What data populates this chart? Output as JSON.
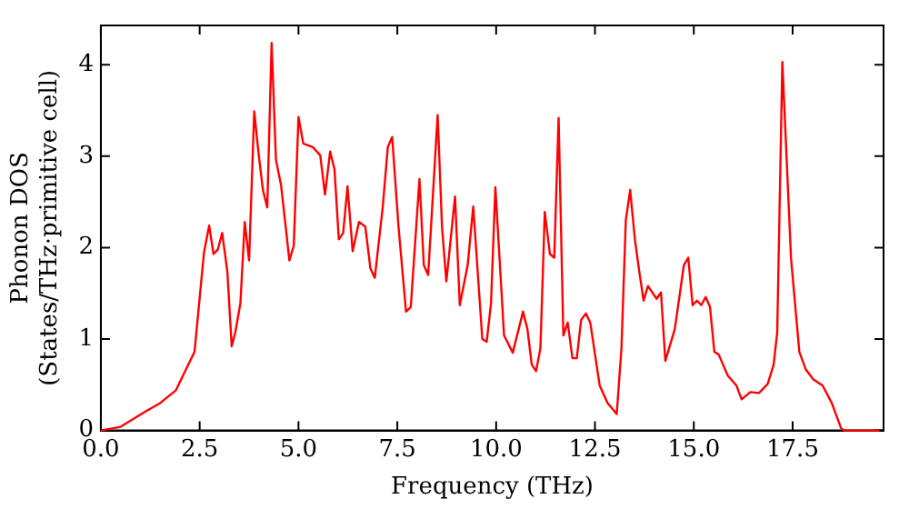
{
  "chart_data": {
    "type": "line",
    "xlabel": "Frequency (THz)",
    "ylabel": "Phonon DOS\n(States/THz·primitive cell)",
    "xlim": [
      0,
      19.8
    ],
    "xticks": [
      {
        "value": 0,
        "label": "0.0"
      },
      {
        "value": 2.5,
        "label": "2.5"
      },
      {
        "value": 5,
        "label": "5.0"
      },
      {
        "value": 7.5,
        "label": "7.5"
      },
      {
        "value": 10,
        "label": "10.0"
      },
      {
        "value": 12.5,
        "label": "12.5"
      },
      {
        "value": 15,
        "label": "15.0"
      },
      {
        "value": 17.5,
        "label": "17.5"
      }
    ],
    "ylim": [
      0,
      4.43
    ],
    "yticks": [
      0,
      1,
      2,
      3,
      4
    ],
    "grid": false,
    "legend": false,
    "marker": "none",
    "line_style": "solid",
    "series": [
      {
        "color": "#ff0000",
        "x": [
          0,
          0.5,
          1.1,
          1.5,
          1.9,
          2.37,
          2.61,
          2.74,
          2.85,
          2.96,
          3.07,
          3.2,
          3.31,
          3.4,
          3.53,
          3.64,
          3.75,
          3.88,
          3.99,
          4.1,
          4.21,
          4.32,
          4.43,
          4.56,
          4.77,
          4.88,
          5.0,
          5.12,
          5.36,
          5.55,
          5.67,
          5.8,
          5.91,
          6.02,
          6.13,
          6.24,
          6.37,
          6.53,
          6.69,
          6.82,
          6.93,
          7.13,
          7.26,
          7.37,
          7.53,
          7.72,
          7.84,
          8.06,
          8.17,
          8.28,
          8.52,
          8.63,
          8.74,
          8.96,
          9.08,
          9.28,
          9.42,
          9.65,
          9.76,
          9.87,
          9.98,
          10.2,
          10.42,
          10.68,
          10.79,
          10.9,
          11.01,
          11.12,
          11.23,
          11.36,
          11.47,
          11.58,
          11.7,
          11.81,
          11.93,
          12.04,
          12.15,
          12.27,
          12.38,
          12.62,
          12.82,
          13.05,
          13.17,
          13.28,
          13.39,
          13.51,
          13.62,
          13.73,
          13.84,
          13.95,
          14.06,
          14.17,
          14.28,
          14.52,
          14.75,
          14.86,
          14.97,
          15.08,
          15.19,
          15.3,
          15.41,
          15.52,
          15.63,
          15.86,
          16.08,
          16.21,
          16.43,
          16.65,
          16.87,
          17.02,
          17.11,
          17.24,
          17.46,
          17.67,
          17.83,
          18.02,
          18.26,
          18.49,
          18.73,
          18.8,
          19.7
        ],
        "values": [
          0,
          0.04,
          0.2,
          0.3,
          0.44,
          0.86,
          1.95,
          2.24,
          1.93,
          1.98,
          2.16,
          1.74,
          0.92,
          1.07,
          1.39,
          2.28,
          1.86,
          3.49,
          3.03,
          2.63,
          2.44,
          4.24,
          2.96,
          2.68,
          1.86,
          2.02,
          3.43,
          3.14,
          3.1,
          3.01,
          2.58,
          3.05,
          2.86,
          2.09,
          2.16,
          2.67,
          1.96,
          2.28,
          2.23,
          1.77,
          1.67,
          2.44,
          3.1,
          3.21,
          2.23,
          1.3,
          1.35,
          2.75,
          1.81,
          1.7,
          3.45,
          2.23,
          1.63,
          2.56,
          1.37,
          1.81,
          2.45,
          1.0,
          0.97,
          1.39,
          2.66,
          1.04,
          0.85,
          1.3,
          1.11,
          0.72,
          0.65,
          0.9,
          2.39,
          1.93,
          1.89,
          3.42,
          1.04,
          1.18,
          0.79,
          0.79,
          1.21,
          1.28,
          1.18,
          0.49,
          0.3,
          0.18,
          0.9,
          2.3,
          2.63,
          2.09,
          1.74,
          1.42,
          1.58,
          1.51,
          1.44,
          1.51,
          0.76,
          1.11,
          1.81,
          1.89,
          1.37,
          1.42,
          1.37,
          1.46,
          1.35,
          0.86,
          0.83,
          0.6,
          0.49,
          0.34,
          0.42,
          0.41,
          0.51,
          0.72,
          1.07,
          4.03,
          1.88,
          0.86,
          0.67,
          0.56,
          0.49,
          0.3,
          0.02,
          0,
          0
        ]
      }
    ]
  }
}
